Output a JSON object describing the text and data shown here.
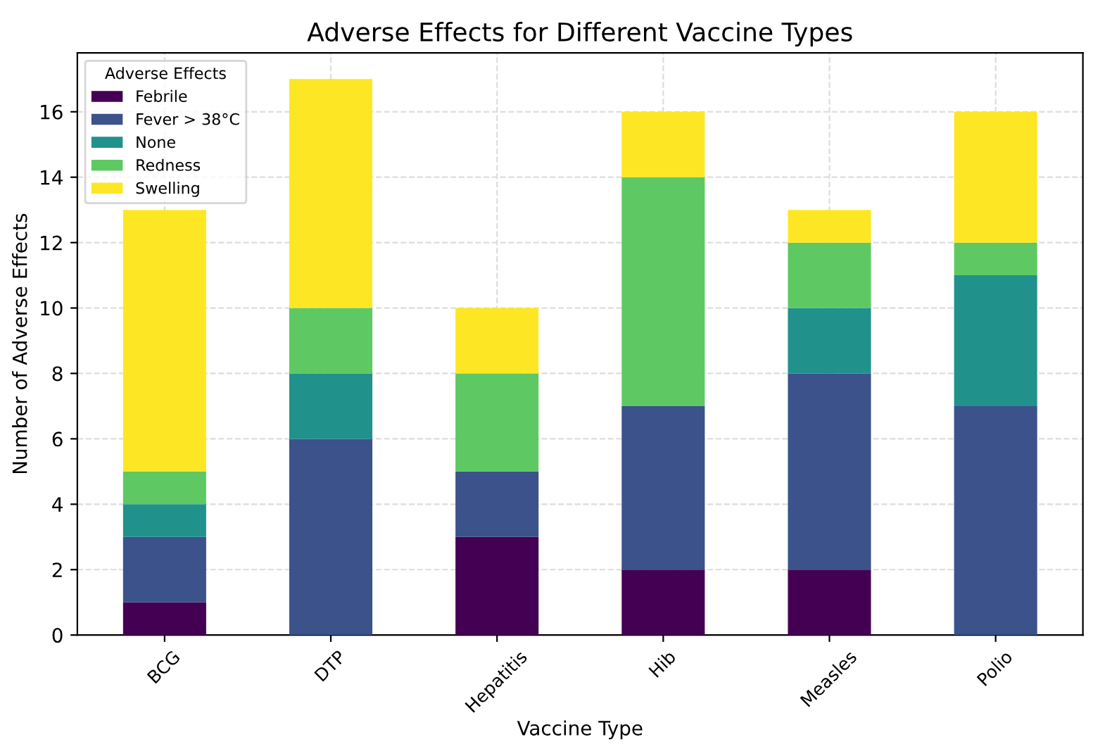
{
  "chart_data": {
    "type": "bar",
    "stacked": true,
    "title": "Adverse Effects for Different Vaccine Types",
    "xlabel": "Vaccine Type",
    "ylabel": "Number of Adverse Effects",
    "legend_title": "Adverse Effects",
    "legend": "top left",
    "grid": true,
    "categories": [
      "BCG",
      "DTP",
      "Hepatitis",
      "Hib",
      "Measles",
      "Polio"
    ],
    "series": [
      {
        "name": "Febrile",
        "color": "#440154",
        "values": [
          1,
          0,
          3,
          2,
          2,
          0
        ]
      },
      {
        "name": "Fever > 38°C",
        "color": "#3b528b",
        "values": [
          2,
          6,
          2,
          5,
          6,
          7
        ]
      },
      {
        "name": "None",
        "color": "#21918c",
        "values": [
          1,
          2,
          0,
          0,
          2,
          4
        ]
      },
      {
        "name": "Redness",
        "color": "#5ec962",
        "values": [
          1,
          2,
          3,
          7,
          2,
          1
        ]
      },
      {
        "name": "Swelling",
        "color": "#fde725",
        "values": [
          8,
          7,
          2,
          2,
          1,
          4
        ]
      }
    ],
    "ylim": [
      0,
      17.8
    ],
    "yticks": [
      0,
      2,
      4,
      6,
      8,
      10,
      12,
      14,
      16
    ]
  }
}
